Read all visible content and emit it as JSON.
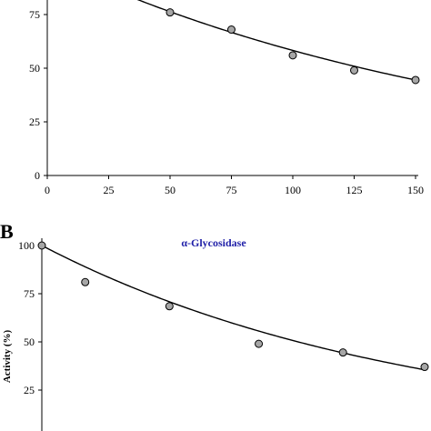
{
  "chart_data": [
    {
      "panel": "",
      "type": "scatter",
      "title": "",
      "xlabel": "",
      "ylabel": "",
      "xlim": [
        0,
        150
      ],
      "ylim": [
        0,
        100
      ],
      "x_ticks": [
        "0",
        "25",
        "50",
        "75",
        "100",
        "125",
        "150"
      ],
      "y_ticks": [
        "0",
        "25",
        "50",
        "75"
      ],
      "points": [
        {
          "x": 50,
          "y": 76
        },
        {
          "x": 75,
          "y": 68
        },
        {
          "x": 100,
          "y": 56
        },
        {
          "x": 125,
          "y": 49
        },
        {
          "x": 150,
          "y": 44.5
        }
      ],
      "fit_curve": {
        "type": "exponential-decay",
        "a": 100,
        "k": 0.0054
      },
      "marker_color": "#a6a6a6",
      "grid": false
    },
    {
      "panel": "B",
      "type": "scatter",
      "title": "α-Glycosidase",
      "xlabel": "",
      "ylabel": "Activity (%)",
      "xlim": [
        0,
        150
      ],
      "ylim": [
        0,
        100
      ],
      "x_ticks": [],
      "y_ticks": [
        "25",
        "50",
        "75",
        "100"
      ],
      "points": [
        {
          "x": 0,
          "y": 100
        },
        {
          "x": 17,
          "y": 81
        },
        {
          "x": 50,
          "y": 68.5
        },
        {
          "x": 85,
          "y": 49
        },
        {
          "x": 118,
          "y": 44.5
        },
        {
          "x": 150,
          "y": 37
        }
      ],
      "fit_curve": {
        "type": "exponential-decay",
        "a": 100,
        "k": 0.0069
      },
      "marker_color": "#a6a6a6",
      "title_color": "#1f1fa8",
      "grid": false
    }
  ]
}
